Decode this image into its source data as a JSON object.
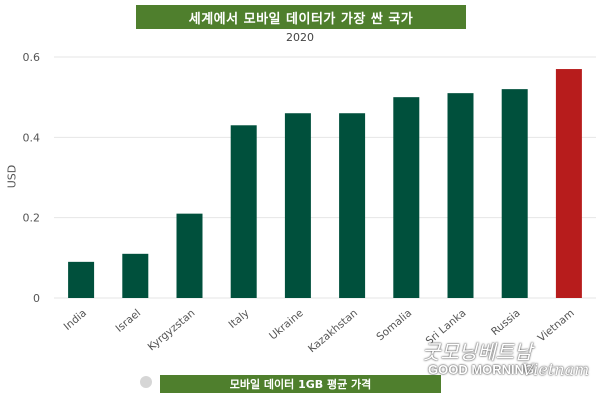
{
  "chart_data": {
    "type": "bar",
    "title": "세계에서 모바일 데이터가 가장 싼 국가",
    "subtitle": "2020",
    "ylabel": "USD",
    "xlabel": "",
    "ylim": [
      0,
      0.6
    ],
    "yticks": [
      "0",
      "0.2",
      "0.4",
      "0.6"
    ],
    "categories": [
      "India",
      "Israel",
      "Kyrgyzstan",
      "Italy",
      "Ukraine",
      "Kazakhstan",
      "Somalia",
      "Sri Lanka",
      "Russia",
      "Vietnam"
    ],
    "values": [
      0.09,
      0.11,
      0.21,
      0.43,
      0.46,
      0.46,
      0.5,
      0.51,
      0.52,
      0.57
    ],
    "bar_colors": [
      "#00503c",
      "#00503c",
      "#00503c",
      "#00503c",
      "#00503c",
      "#00503c",
      "#00503c",
      "#00503c",
      "#00503c",
      "#b71c1c"
    ],
    "grid": true,
    "legend_position": "bottom",
    "legend_label": "모바일 데이터 1GB 평균 가격"
  },
  "watermark": {
    "script": "굿모닝베트남",
    "main": "GOOD MORNING",
    "sub": "Vietnam"
  }
}
